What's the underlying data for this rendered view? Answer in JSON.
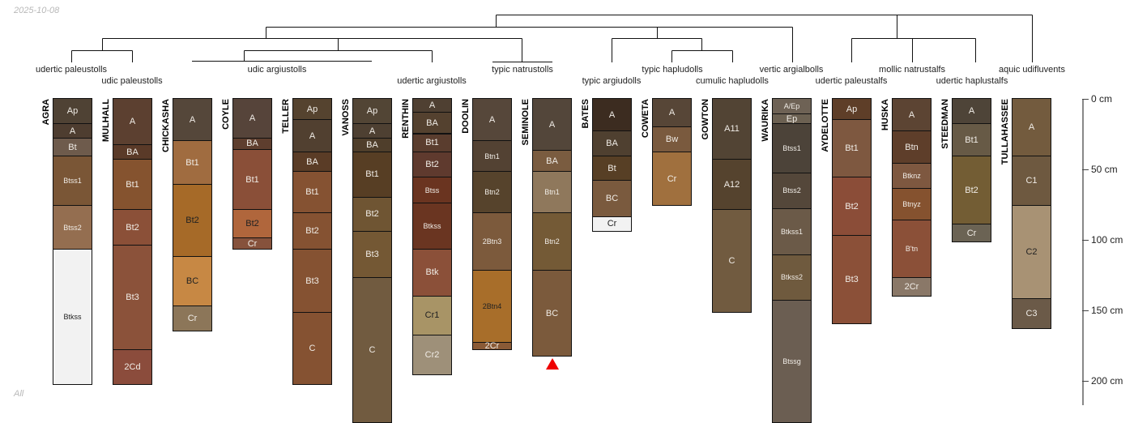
{
  "date": "2025-10-08",
  "subset_label": "All",
  "taxa": [
    "udertic paleustolls",
    "udic paleustolls",
    "udic argiustolls",
    "udertic argiustolls",
    "typic natrustolls",
    "typic argiudolls",
    "typic hapludolls",
    "cumulic hapludolls",
    "vertic argialbolls",
    "udertic paleustalfs",
    "mollic natrustalfs",
    "udertic haplustalfs",
    "aquic udifluvents"
  ],
  "depth_axis": {
    "unit": "cm",
    "ticks": [
      {
        "value": 0,
        "label": "0 cm"
      },
      {
        "value": 50,
        "label": "50 cm"
      },
      {
        "value": 100,
        "label": "100 cm"
      },
      {
        "value": 150,
        "label": "150 cm"
      },
      {
        "value": 200,
        "label": "200 cm"
      }
    ]
  },
  "profiles": [
    {
      "name": "AGRA",
      "horizons": [
        {
          "n": "Ap",
          "b": 18,
          "c": "#4f4234"
        },
        {
          "n": "A",
          "b": 28,
          "c": "#4e3d30"
        },
        {
          "n": "Bt",
          "b": 41,
          "c": "#6e5b4c"
        },
        {
          "n": "Btss1",
          "b": 76,
          "c": "#7a5636"
        },
        {
          "n": "Btss2",
          "b": 107,
          "c": "#946e50"
        },
        {
          "n": "Btkss",
          "b": 203,
          "c": "#f2f2f2",
          "dark": true
        }
      ]
    },
    {
      "name": "MULHALL",
      "horizons": [
        {
          "n": "A",
          "b": 33,
          "c": "#5c4030"
        },
        {
          "n": "BA",
          "b": 43,
          "c": "#5a3a28"
        },
        {
          "n": "Bt1",
          "b": 79,
          "c": "#85532f"
        },
        {
          "n": "Bt2",
          "b": 104,
          "c": "#8b5038"
        },
        {
          "n": "Bt3",
          "b": 178,
          "c": "#8b523a"
        },
        {
          "n": "2Cd",
          "b": 203,
          "c": "#8b4c3c"
        }
      ]
    },
    {
      "name": "CHICKASHA",
      "horizons": [
        {
          "n": "A",
          "b": 30,
          "c": "#55473a"
        },
        {
          "n": "Bt1",
          "b": 61,
          "c": "#a06c40"
        },
        {
          "n": "Bt2",
          "b": 112,
          "c": "#a66a28",
          "dark": true
        },
        {
          "n": "BC",
          "b": 147,
          "c": "#c78844",
          "dark": true
        },
        {
          "n": "Cr",
          "b": 165,
          "c": "#8c7659"
        }
      ]
    },
    {
      "name": "COYLE",
      "horizons": [
        {
          "n": "A",
          "b": 28,
          "c": "#56443a"
        },
        {
          "n": "BA",
          "b": 36,
          "c": "#5e3e2e"
        },
        {
          "n": "Bt1",
          "b": 79,
          "c": "#8a4f38"
        },
        {
          "n": "Bt2",
          "b": 99,
          "c": "#b0663c",
          "dark": true
        },
        {
          "n": "Cr",
          "b": 107,
          "c": "#86523c"
        }
      ]
    },
    {
      "name": "TELLER",
      "horizons": [
        {
          "n": "Ap",
          "b": 15,
          "c": "#55432f"
        },
        {
          "n": "A",
          "b": 38,
          "c": "#514030"
        },
        {
          "n": "BA",
          "b": 52,
          "c": "#5a3c26"
        },
        {
          "n": "Bt1",
          "b": 81,
          "c": "#855232"
        },
        {
          "n": "Bt2",
          "b": 107,
          "c": "#855232"
        },
        {
          "n": "Bt3",
          "b": 152,
          "c": "#855232"
        },
        {
          "n": "C",
          "b": 203,
          "c": "#855232"
        }
      ]
    },
    {
      "name": "VANOSS",
      "horizons": [
        {
          "n": "Ap",
          "b": 18,
          "c": "#524535"
        },
        {
          "n": "A",
          "b": 28,
          "c": "#4e4032"
        },
        {
          "n": "BA",
          "b": 38,
          "c": "#4f3e2b"
        },
        {
          "n": "Bt1",
          "b": 70,
          "c": "#573e24"
        },
        {
          "n": "Bt2",
          "b": 94,
          "c": "#6f5533"
        },
        {
          "n": "Bt3",
          "b": 127,
          "c": "#745834"
        },
        {
          "n": "C",
          "b": 230,
          "c": "#715b40"
        }
      ]
    },
    {
      "name": "RENTHIN",
      "horizons": [
        {
          "n": "A",
          "b": 10,
          "c": "#4f4032"
        },
        {
          "n": "BA",
          "b": 25,
          "c": "#54412f"
        },
        {
          "n": "Bt1",
          "b": 38,
          "c": "#5a3d2e"
        },
        {
          "n": "Bt2",
          "b": 56,
          "c": "#5f3a2e"
        },
        {
          "n": "Btss",
          "b": 74,
          "c": "#6a3420"
        },
        {
          "n": "Btkss",
          "b": 107,
          "c": "#6a3521"
        },
        {
          "n": "Btk",
          "b": 140,
          "c": "#8b5039"
        },
        {
          "n": "Cr1",
          "b": 168,
          "c": "#a89466",
          "dark": true
        },
        {
          "n": "Cr2",
          "b": 196,
          "c": "#9e9079"
        }
      ]
    },
    {
      "name": "DOOLIN",
      "horizons": [
        {
          "n": "A",
          "b": 30,
          "c": "#56473a"
        },
        {
          "n": "Btn1",
          "b": 52,
          "c": "#534233"
        },
        {
          "n": "Btn2",
          "b": 81,
          "c": "#56432c"
        },
        {
          "n": "2Btn3",
          "b": 122,
          "c": "#7c5a3c"
        },
        {
          "n": "2Btn4",
          "b": 173,
          "c": "#a86e2a",
          "dark": true
        },
        {
          "n": "2Cr",
          "b": 178,
          "c": "#8a5a36"
        }
      ]
    },
    {
      "name": "SEMINOLE",
      "marker": true,
      "horizons": [
        {
          "n": "A",
          "b": 37,
          "c": "#53463a"
        },
        {
          "n": "BA",
          "b": 52,
          "c": "#7a5c40"
        },
        {
          "n": "Btn1",
          "b": 81,
          "c": "#8f785c"
        },
        {
          "n": "Btn2",
          "b": 122,
          "c": "#745a36"
        },
        {
          "n": "BC",
          "b": 183,
          "c": "#7b5a3c"
        }
      ]
    },
    {
      "name": "BATES",
      "horizons": [
        {
          "n": "A",
          "b": 23,
          "c": "#3c2c20"
        },
        {
          "n": "BA",
          "b": 41,
          "c": "#4f4030"
        },
        {
          "n": "Bt",
          "b": 58,
          "c": "#573f25"
        },
        {
          "n": "BC",
          "b": 84,
          "c": "#7a5a3e"
        },
        {
          "n": "Cr",
          "b": 94,
          "c": "#f2f2f2",
          "dark": true
        }
      ]
    },
    {
      "name": "COWETA",
      "horizons": [
        {
          "n": "A",
          "b": 20,
          "c": "#574637"
        },
        {
          "n": "Bw",
          "b": 38,
          "c": "#7a5a3e"
        },
        {
          "n": "Cr",
          "b": 76,
          "c": "#a0703e"
        }
      ]
    },
    {
      "name": "GOWTON",
      "horizons": [
        {
          "n": "A11",
          "b": 43,
          "c": "#524434"
        },
        {
          "n": "A12",
          "b": 79,
          "c": "#55432e"
        },
        {
          "n": "C",
          "b": 152,
          "c": "#715b40"
        }
      ]
    },
    {
      "name": "WAURIKA",
      "horizons": [
        {
          "n": "A/Ep",
          "b": 11,
          "c": "#6e6255"
        },
        {
          "n": "Ep",
          "b": 18,
          "c": "#6c6152"
        },
        {
          "n": "Btss1",
          "b": 53,
          "c": "#4c4339"
        },
        {
          "n": "Btss2",
          "b": 78,
          "c": "#54473a"
        },
        {
          "n": "Btkss1",
          "b": 111,
          "c": "#6b5a48"
        },
        {
          "n": "Btkss2",
          "b": 143,
          "c": "#6f5a3e"
        },
        {
          "n": "Btssg",
          "b": 230,
          "c": "#6b5e52"
        }
      ]
    },
    {
      "name": "AYDELOTTE",
      "horizons": [
        {
          "n": "Ap",
          "b": 15,
          "c": "#5e3e28"
        },
        {
          "n": "Bt1",
          "b": 56,
          "c": "#7e5840"
        },
        {
          "n": "Bt2",
          "b": 97,
          "c": "#8b4d38"
        },
        {
          "n": "Bt3",
          "b": 160,
          "c": "#8b5038"
        }
      ]
    },
    {
      "name": "HUSKA",
      "horizons": [
        {
          "n": "A",
          "b": 23,
          "c": "#5c4433"
        },
        {
          "n": "Btn",
          "b": 46,
          "c": "#5e3e2a"
        },
        {
          "n": "Btknz",
          "b": 64,
          "c": "#7e5840"
        },
        {
          "n": "Btnyz",
          "b": 86,
          "c": "#85522f"
        },
        {
          "n": "B'tn",
          "b": 127,
          "c": "#8b5038"
        },
        {
          "n": "2Cr",
          "b": 140,
          "c": "#8a7868"
        }
      ]
    },
    {
      "name": "STEEDMAN",
      "horizons": [
        {
          "n": "A",
          "b": 18,
          "c": "#4e4438"
        },
        {
          "n": "Bt1",
          "b": 41,
          "c": "#675a46"
        },
        {
          "n": "Bt2",
          "b": 89,
          "c": "#735d34"
        },
        {
          "n": "Cr",
          "b": 102,
          "c": "#6b6354"
        }
      ]
    },
    {
      "name": "TULLAHASSEE",
      "horizons": [
        {
          "n": "A",
          "b": 41,
          "c": "#735b3e"
        },
        {
          "n": "C1",
          "b": 76,
          "c": "#6e5940"
        },
        {
          "n": "C2",
          "b": 142,
          "c": "#a89274",
          "dark": true
        },
        {
          "n": "C3",
          "b": 163,
          "c": "#6b5a48"
        }
      ]
    }
  ]
}
